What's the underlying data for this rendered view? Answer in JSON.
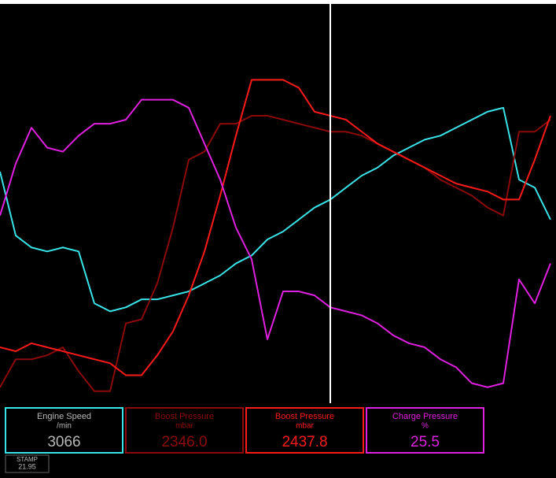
{
  "chart_data": {
    "type": "line",
    "x": [
      0,
      20,
      40,
      60,
      80,
      100,
      120,
      140,
      160,
      180,
      200,
      220,
      240,
      260,
      280,
      300,
      320,
      340,
      360,
      380,
      400,
      420,
      440,
      460,
      480,
      500,
      520,
      540,
      560,
      580,
      600,
      620,
      640,
      660,
      680,
      700
    ],
    "xlim": [
      0,
      707
    ],
    "ylim": [
      0,
      100
    ],
    "cursor_x": 420,
    "series": [
      {
        "name": "Engine Speed",
        "unit": "/min",
        "reading": "3066",
        "color": "#38e4e8",
        "text_color": "#b8b8b8",
        "values": [
          58,
          42,
          39,
          38,
          39,
          38,
          25,
          23,
          24,
          26,
          26,
          27,
          28,
          30,
          32,
          35,
          37,
          41,
          43,
          46,
          49,
          51,
          54,
          57,
          59,
          62,
          64,
          66,
          67,
          69,
          71,
          73,
          74,
          56,
          54,
          46
        ]
      },
      {
        "name": "Boost Pressure",
        "unit": "mbar",
        "reading": "2346.0",
        "color": "#8c0a0a",
        "text_color": "#8c0a0a",
        "values": [
          4,
          11,
          11,
          12,
          14,
          8,
          3,
          3,
          20,
          21,
          30,
          44,
          61,
          63,
          70,
          70,
          72,
          72,
          71,
          70,
          69,
          68,
          68,
          67,
          65,
          63,
          61,
          59,
          56,
          54,
          52,
          49,
          47,
          68,
          68,
          71
        ]
      },
      {
        "name": "Boost Pressure",
        "unit": "mbar",
        "reading": "2437.8",
        "color": "#ff1a1a",
        "text_color": "#ff1a1a",
        "values": [
          14,
          13,
          15,
          14,
          13,
          12,
          11,
          10,
          7,
          7,
          12,
          18,
          27,
          38,
          52,
          67,
          81,
          81,
          81,
          79,
          73,
          72,
          71,
          68,
          65,
          63,
          61,
          59,
          57,
          55,
          54,
          53,
          51,
          51,
          61,
          72
        ]
      },
      {
        "name": "Charge Pressure",
        "unit": "%",
        "reading": "25.5",
        "color": "#e020e0",
        "text_color": "#e020e0",
        "values": [
          47,
          60,
          69,
          64,
          63,
          67,
          70,
          70,
          71,
          76,
          76,
          76,
          74,
          65,
          56,
          44,
          36,
          16,
          28,
          28,
          27,
          24,
          23,
          22,
          20,
          17,
          15,
          14,
          11,
          9,
          5,
          4,
          5,
          31,
          25,
          35
        ]
      }
    ]
  },
  "stamp": {
    "label": "STAMP",
    "value": "21.95"
  }
}
